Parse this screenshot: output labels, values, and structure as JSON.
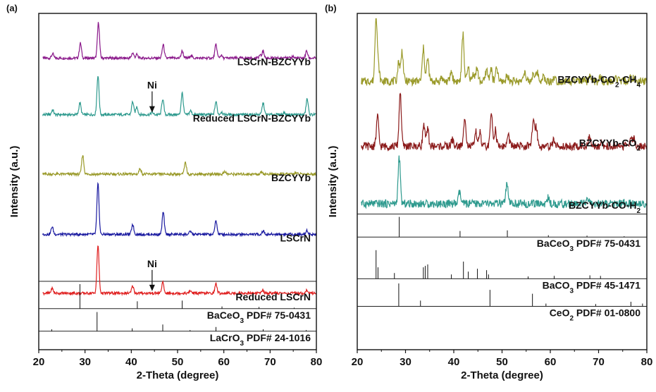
{
  "chart_data": [
    {
      "type": "line",
      "panel_label": "(a)",
      "xlabel": "2-Theta (degree)",
      "ylabel": "Intensity (a.u.)",
      "xlim": [
        20,
        80
      ],
      "x_ticks": [
        20,
        30,
        40,
        50,
        60,
        70,
        80
      ],
      "grid": false,
      "legend": "none",
      "series": [
        {
          "name": "LSCrN-BZCYYb",
          "color": "#8b1a8b",
          "baseline_frac": 0.133,
          "amp_frac": 0.106,
          "peaks": [
            [
              23.0,
              0.12
            ],
            [
              29.0,
              0.42
            ],
            [
              32.9,
              1.0
            ],
            [
              40.3,
              0.15
            ],
            [
              41.2,
              0.1
            ],
            [
              46.9,
              0.38
            ],
            [
              51.0,
              0.2
            ],
            [
              52.9,
              0.08
            ],
            [
              58.3,
              0.38
            ],
            [
              59.4,
              0.08
            ],
            [
              67.8,
              0.08
            ],
            [
              68.5,
              0.2
            ],
            [
              73.2,
              0.05
            ],
            [
              74.9,
              0.05
            ],
            [
              77.9,
              0.2
            ]
          ]
        },
        {
          "name": "Reduced LSCrN-BZCYYb",
          "color": "#2e9a8e",
          "baseline_frac": 0.301,
          "amp_frac": 0.117,
          "peaks": [
            [
              23.0,
              0.12
            ],
            [
              28.9,
              0.3
            ],
            [
              32.8,
              1.0
            ],
            [
              40.3,
              0.33
            ],
            [
              41.2,
              0.2
            ],
            [
              44.5,
              0.06
            ],
            [
              46.8,
              0.4
            ],
            [
              51.0,
              0.55
            ],
            [
              52.8,
              0.1
            ],
            [
              58.3,
              0.33
            ],
            [
              59.5,
              0.07
            ],
            [
              68.5,
              0.3
            ],
            [
              73.0,
              0.05
            ],
            [
              78.0,
              0.4
            ]
          ]
        },
        {
          "name": "BZCYYb",
          "color": "#9a9a2a",
          "baseline_frac": 0.478,
          "amp_frac": 0.057,
          "peaks": [
            [
              29.5,
              1.0
            ],
            [
              41.9,
              0.3
            ],
            [
              51.7,
              0.6
            ],
            [
              60.2,
              0.15
            ],
            [
              68.2,
              0.12
            ],
            [
              75.5,
              0.08
            ]
          ]
        },
        {
          "name": "LSCrN",
          "color": "#1a1aa0",
          "baseline_frac": 0.657,
          "amp_frac": 0.15,
          "peaks": [
            [
              22.9,
              0.15
            ],
            [
              32.8,
              1.0
            ],
            [
              40.3,
              0.2
            ],
            [
              46.9,
              0.44
            ],
            [
              52.8,
              0.06
            ],
            [
              58.3,
              0.28
            ],
            [
              68.5,
              0.07
            ],
            [
              78.0,
              0.08
            ]
          ]
        },
        {
          "name": "Reduced LSCrN",
          "color": "#e02020",
          "baseline_frac": 0.832,
          "amp_frac": 0.143,
          "peaks": [
            [
              22.9,
              0.1
            ],
            [
              32.8,
              1.0
            ],
            [
              40.3,
              0.15
            ],
            [
              46.8,
              0.22
            ],
            [
              52.8,
              0.05
            ],
            [
              58.3,
              0.2
            ],
            [
              68.4,
              0.07
            ],
            [
              77.9,
              0.06
            ]
          ]
        }
      ],
      "reference_patterns": [
        {
          "name_parts": [
            [
              "BaCeO",
              false
            ],
            [
              "3",
              true
            ],
            [
              " PDF# 75-0431",
              false
            ]
          ],
          "baseline_frac": 0.878,
          "amp_frac": 0.073,
          "sticks": [
            [
              28.9,
              1.0
            ],
            [
              41.3,
              0.3
            ],
            [
              51.0,
              0.33
            ],
            [
              59.6,
              0.09
            ],
            [
              67.6,
              0.07
            ],
            [
              75.2,
              0.04
            ]
          ]
        },
        {
          "name_parts": [
            [
              "LaCrO",
              false
            ],
            [
              "3",
              true
            ],
            [
              " PDF# 24-1016",
              false
            ]
          ],
          "baseline_frac": 0.945,
          "amp_frac": 0.057,
          "sticks": [
            [
              22.8,
              0.1
            ],
            [
              32.6,
              1.0
            ],
            [
              40.2,
              0.15
            ],
            [
              46.8,
              0.35
            ],
            [
              52.7,
              0.06
            ],
            [
              58.3,
              0.22
            ],
            [
              68.5,
              0.1
            ],
            [
              77.8,
              0.06
            ]
          ]
        }
      ],
      "annotations": [
        {
          "text": "Ni",
          "x": 44.5,
          "baseline_frac": 0.301
        },
        {
          "text": "Ni",
          "x": 44.5,
          "baseline_frac": 0.832
        }
      ],
      "label_parts": {
        "LSCrN-BZCYYb": [
          [
            "LSCrN-BZCYYb",
            false
          ]
        ],
        "Reduced LSCrN-BZCYYb": [
          [
            "Reduced LSCrN-BZCYYb",
            false
          ]
        ],
        "BZCYYb": [
          [
            "BZCYYb",
            false
          ]
        ],
        "LSCrN": [
          [
            "LSCrN",
            false
          ]
        ],
        "Reduced LSCrN": [
          [
            "Reduced LSCrN",
            false
          ]
        ]
      }
    },
    {
      "type": "line",
      "panel_label": "(b)",
      "xlabel": "2-Theta (degree)",
      "ylabel": "Intensity (a.u.)",
      "xlim": [
        20,
        80
      ],
      "x_ticks": [
        20,
        30,
        40,
        50,
        60,
        70,
        80
      ],
      "grid": false,
      "legend": "none",
      "series": [
        {
          "name": "BZCYYb-CO2-CH4",
          "color": "#9a9a2a",
          "baseline_frac": 0.202,
          "amp_frac": 0.196,
          "peaks": [
            [
              23.9,
              1.0
            ],
            [
              24.4,
              0.2
            ],
            [
              28.6,
              0.3
            ],
            [
              29.3,
              0.46
            ],
            [
              33.7,
              0.5
            ],
            [
              34.6,
              0.34
            ],
            [
              37.5,
              0.06
            ],
            [
              39.5,
              0.15
            ],
            [
              41.9,
              0.72
            ],
            [
              43.0,
              0.2
            ],
            [
              44.1,
              0.12
            ],
            [
              44.8,
              0.2
            ],
            [
              46.8,
              0.18
            ],
            [
              47.7,
              0.2
            ],
            [
              48.9,
              0.2
            ],
            [
              51.1,
              0.1
            ],
            [
              54.6,
              0.16
            ],
            [
              56.5,
              0.14
            ],
            [
              57.3,
              0.14
            ],
            [
              58.5,
              0.08
            ],
            [
              60.8,
              0.06
            ],
            [
              68.2,
              0.06
            ],
            [
              70.4,
              0.06
            ],
            [
              73.7,
              0.05
            ],
            [
              76.7,
              0.05
            ],
            [
              77.3,
              0.05
            ]
          ]
        },
        {
          "name": "BZCYYb-CO2",
          "color": "#8b1a1a",
          "baseline_frac": 0.395,
          "amp_frac": 0.163,
          "peaks": [
            [
              24.2,
              0.55
            ],
            [
              28.9,
              1.0
            ],
            [
              33.8,
              0.4
            ],
            [
              34.6,
              0.3
            ],
            [
              39.7,
              0.12
            ],
            [
              42.3,
              0.55
            ],
            [
              44.6,
              0.25
            ],
            [
              45.4,
              0.25
            ],
            [
              47.8,
              0.6
            ],
            [
              48.6,
              0.3
            ],
            [
              51.3,
              0.2
            ],
            [
              56.5,
              0.5
            ],
            [
              57.1,
              0.35
            ],
            [
              60.8,
              0.12
            ],
            [
              68.1,
              0.15
            ],
            [
              70.6,
              0.1
            ],
            [
              76.8,
              0.15
            ],
            [
              77.4,
              0.15
            ]
          ]
        },
        {
          "name": "BZCYYb-CO-H2",
          "color": "#2e9a8e",
          "baseline_frac": 0.566,
          "amp_frac": 0.137,
          "peaks": [
            [
              28.7,
              1.0
            ],
            [
              41.2,
              0.25
            ],
            [
              51.0,
              0.42
            ],
            [
              59.5,
              0.12
            ],
            [
              67.8,
              0.1
            ],
            [
              75.0,
              0.05
            ]
          ]
        }
      ],
      "reference_patterns": [
        {
          "name_parts": [
            [
              "BaCeO",
              false
            ],
            [
              "3",
              true
            ],
            [
              " PDF# 75-0431",
              false
            ]
          ],
          "baseline_frac": 0.665,
          "amp_frac": 0.06,
          "sticks": [
            [
              28.7,
              1.0
            ],
            [
              41.3,
              0.3
            ],
            [
              51.1,
              0.33
            ],
            [
              59.6,
              0.09
            ],
            [
              67.6,
              0.07
            ],
            [
              75.3,
              0.04
            ]
          ]
        },
        {
          "name_parts": [
            [
              "BaCO",
              false
            ],
            [
              "3",
              true
            ],
            [
              " PDF# 45-1471",
              false
            ]
          ],
          "baseline_frac": 0.789,
          "amp_frac": 0.085,
          "sticks": [
            [
              23.9,
              1.0
            ],
            [
              24.3,
              0.4
            ],
            [
              27.7,
              0.2
            ],
            [
              33.7,
              0.4
            ],
            [
              34.1,
              0.45
            ],
            [
              34.6,
              0.5
            ],
            [
              39.5,
              0.15
            ],
            [
              42.0,
              0.6
            ],
            [
              43.0,
              0.25
            ],
            [
              44.9,
              0.35
            ],
            [
              46.8,
              0.3
            ],
            [
              47.2,
              0.15
            ],
            [
              55.4,
              0.08
            ],
            [
              60.8,
              0.1
            ],
            [
              68.2,
              0.12
            ],
            [
              70.4,
              0.1
            ]
          ]
        },
        {
          "name_parts": [
            [
              "CeO",
              false
            ],
            [
              "2",
              true
            ],
            [
              " PDF# 01-0800",
              false
            ]
          ],
          "baseline_frac": 0.871,
          "amp_frac": 0.068,
          "sticks": [
            [
              28.6,
              1.0
            ],
            [
              33.1,
              0.25
            ],
            [
              47.5,
              0.72
            ],
            [
              56.3,
              0.55
            ],
            [
              59.1,
              0.12
            ],
            [
              69.4,
              0.1
            ],
            [
              76.7,
              0.2
            ],
            [
              79.1,
              0.12
            ]
          ]
        }
      ],
      "annotations": [],
      "label_parts": {
        "BZCYYb-CO2-CH4": [
          [
            "BZCYYb-CO",
            false
          ],
          [
            "2",
            true
          ],
          [
            "-CH",
            false
          ],
          [
            "4",
            true
          ]
        ],
        "BZCYYb-CO2": [
          [
            "BZCYYb-CO",
            false
          ],
          [
            "2",
            true
          ]
        ],
        "BZCYYb-CO-H2": [
          [
            "BZCYYb-CO-H",
            false
          ],
          [
            "2",
            true
          ]
        ]
      }
    }
  ]
}
